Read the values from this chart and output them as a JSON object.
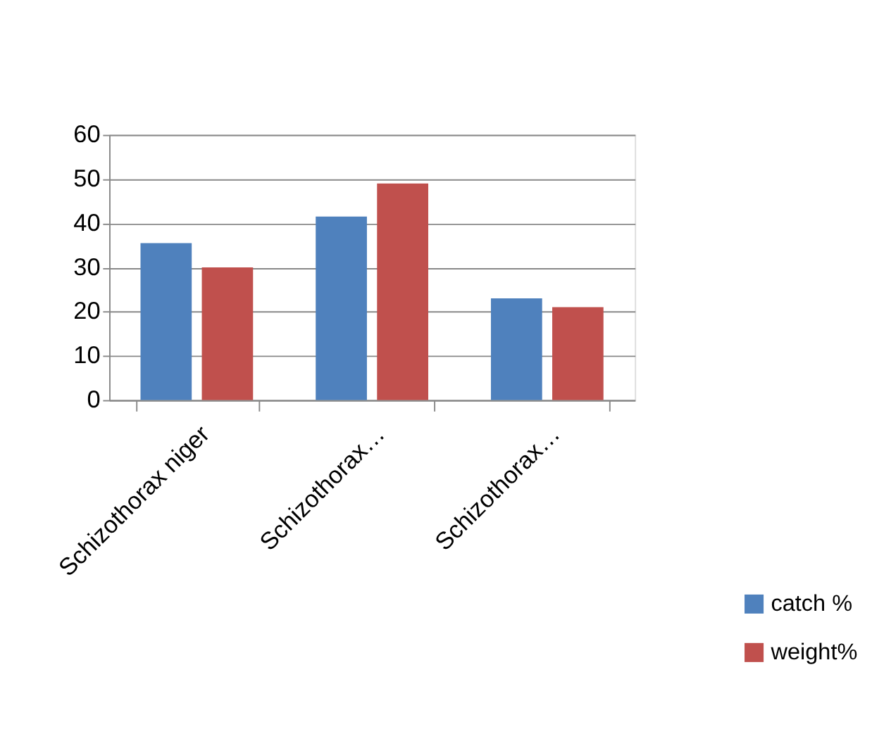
{
  "chart_data": {
    "type": "bar",
    "categories": [
      "Schizothorax niger",
      "Schizothorax…",
      "Schizothorax…"
    ],
    "series": [
      {
        "name": "catch %",
        "color": "#4f81bd",
        "values": [
          35.5,
          41.5,
          23
        ]
      },
      {
        "name": "weight%",
        "color": "#c0504d",
        "values": [
          30,
          49,
          21
        ]
      }
    ],
    "ylim": [
      0,
      60
    ],
    "yticks": [
      0,
      10,
      20,
      30,
      40,
      50,
      60
    ],
    "grid": "y",
    "legend": "bottom right"
  }
}
